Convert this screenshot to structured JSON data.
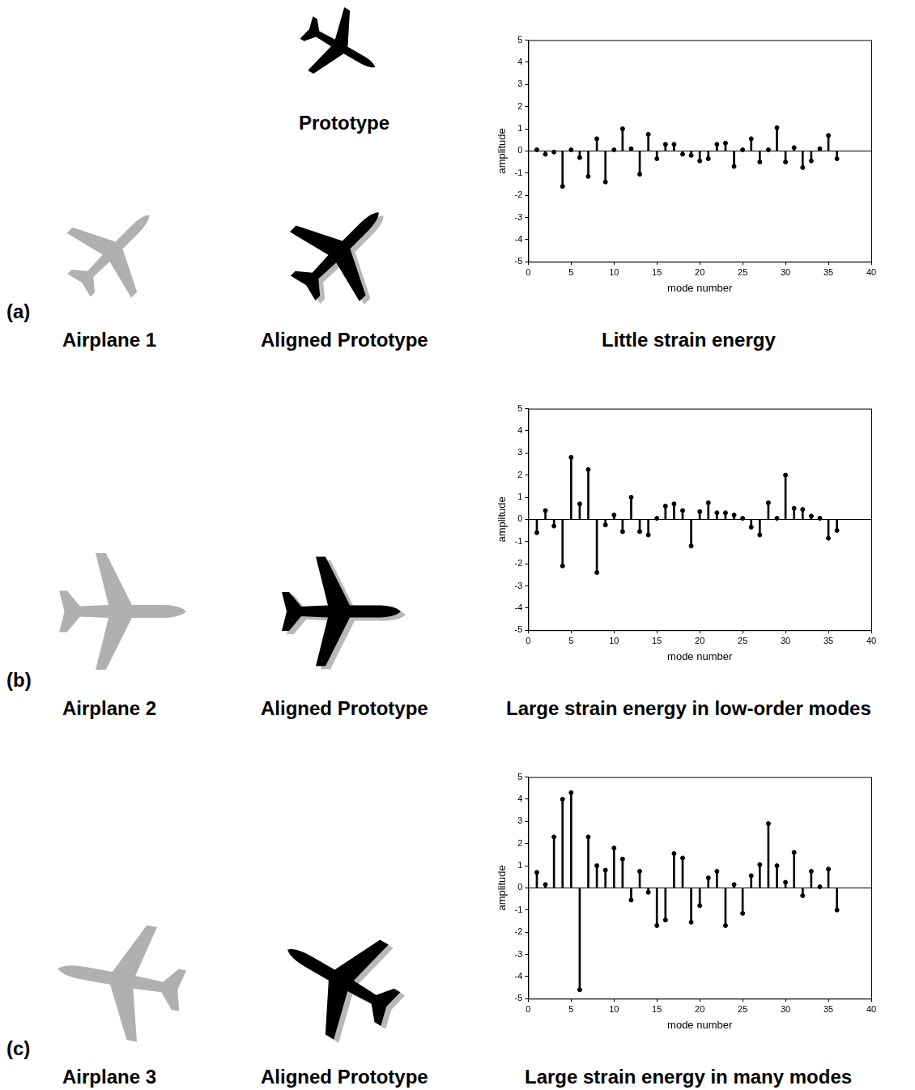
{
  "figure": {
    "prototype_label": "Prototype",
    "panels": [
      {
        "letter": "(a)",
        "airplane_label": "Airplane 1",
        "aligned_label": "Aligned Prototype",
        "caption": "Little strain energy"
      },
      {
        "letter": "(b)",
        "airplane_label": "Airplane 2",
        "aligned_label": "Aligned Prototype",
        "caption": "Large strain energy in low-order modes"
      },
      {
        "letter": "(c)",
        "airplane_label": "Airplane 3",
        "aligned_label": "Aligned Prototype",
        "caption": "Large strain energy in many modes"
      }
    ]
  },
  "chart_data": [
    {
      "type": "bar",
      "marker": "circle",
      "color": "#000000",
      "grid": false,
      "xlabel": "mode number",
      "ylabel": "amplitude",
      "x": [
        1,
        2,
        3,
        4,
        5,
        6,
        7,
        8,
        9,
        10,
        11,
        12,
        13,
        14,
        15,
        16,
        17,
        18,
        19,
        20,
        21,
        22,
        23,
        24,
        25,
        26,
        27,
        28,
        29,
        30,
        31,
        32,
        33,
        34,
        35,
        36
      ],
      "values": [
        0.05,
        -0.15,
        -0.05,
        -1.6,
        0.05,
        -0.3,
        -1.15,
        0.55,
        -1.4,
        0.05,
        1.0,
        0.1,
        -1.05,
        0.75,
        -0.35,
        0.3,
        0.3,
        -0.15,
        -0.2,
        -0.45,
        -0.35,
        0.3,
        0.35,
        -0.7,
        0.05,
        0.55,
        -0.5,
        0.05,
        1.05,
        -0.5,
        0.15,
        -0.75,
        -0.45,
        0.1,
        0.7,
        -0.35
      ],
      "xlim": [
        0,
        40
      ],
      "xticks": [
        0,
        5,
        10,
        15,
        20,
        25,
        30,
        35,
        40
      ],
      "ylim": [
        -5,
        5
      ],
      "yticks": [
        -5,
        -4,
        -3,
        -2,
        -1,
        0,
        1,
        2,
        3,
        4,
        5
      ]
    },
    {
      "type": "bar",
      "marker": "circle",
      "color": "#000000",
      "grid": false,
      "xlabel": "mode number",
      "ylabel": "amplitude",
      "x": [
        1,
        2,
        3,
        4,
        5,
        6,
        7,
        8,
        9,
        10,
        11,
        12,
        13,
        14,
        15,
        16,
        17,
        18,
        19,
        20,
        21,
        22,
        23,
        24,
        25,
        26,
        27,
        28,
        29,
        30,
        31,
        32,
        33,
        34,
        35,
        36
      ],
      "values": [
        -0.6,
        0.4,
        -0.3,
        -2.1,
        2.8,
        0.7,
        2.25,
        -2.4,
        -0.25,
        0.2,
        -0.55,
        1.0,
        -0.55,
        -0.7,
        0.05,
        0.6,
        0.7,
        0.4,
        -1.2,
        0.35,
        0.75,
        0.3,
        0.3,
        0.2,
        0.05,
        -0.35,
        -0.7,
        0.75,
        0.05,
        2.0,
        0.5,
        0.45,
        0.15,
        0.05,
        -0.85,
        -0.5
      ],
      "xlim": [
        0,
        40
      ],
      "xticks": [
        0,
        5,
        10,
        15,
        20,
        25,
        30,
        35,
        40
      ],
      "ylim": [
        -5,
        5
      ],
      "yticks": [
        -5,
        -4,
        -3,
        -2,
        -1,
        0,
        1,
        2,
        3,
        4,
        5
      ]
    },
    {
      "type": "bar",
      "marker": "circle",
      "color": "#000000",
      "grid": false,
      "xlabel": "mode number",
      "ylabel": "amplitude",
      "x": [
        1,
        2,
        3,
        4,
        5,
        6,
        7,
        8,
        9,
        10,
        11,
        12,
        13,
        14,
        15,
        16,
        17,
        18,
        19,
        20,
        21,
        22,
        23,
        24,
        25,
        26,
        27,
        28,
        29,
        30,
        31,
        32,
        33,
        34,
        35,
        36
      ],
      "values": [
        0.7,
        0.15,
        2.3,
        4.0,
        4.3,
        -4.6,
        2.3,
        1.0,
        0.8,
        1.8,
        1.3,
        -0.55,
        0.75,
        -0.2,
        -1.7,
        -1.45,
        1.55,
        1.35,
        -1.55,
        -0.8,
        0.45,
        0.75,
        -1.7,
        0.15,
        -1.15,
        0.55,
        1.05,
        2.9,
        1.0,
        0.25,
        1.6,
        -0.35,
        0.75,
        0.05,
        0.85,
        -1.0
      ],
      "xlim": [
        0,
        40
      ],
      "xticks": [
        0,
        5,
        10,
        15,
        20,
        25,
        30,
        35,
        40
      ],
      "ylim": [
        -5,
        5
      ],
      "yticks": [
        -5,
        -4,
        -3,
        -2,
        -1,
        0,
        1,
        2,
        3,
        4,
        5
      ]
    }
  ]
}
